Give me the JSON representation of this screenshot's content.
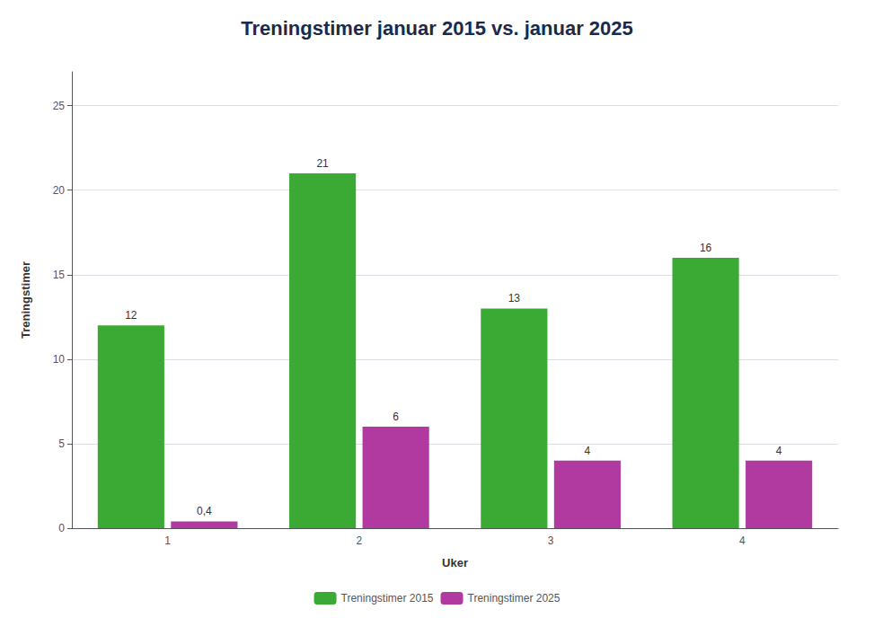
{
  "chart_data": {
    "type": "bar",
    "title": "Treningstimer januar 2015 vs. januar 2025",
    "xlabel": "Uker",
    "ylabel": "Treningstimer",
    "categories": [
      1,
      2,
      3,
      4
    ],
    "series": [
      {
        "name": "Treningstimer 2015",
        "color": "#3aaa35",
        "values": [
          12,
          21,
          13,
          16
        ],
        "value_labels": [
          "12",
          "21",
          "13",
          "16"
        ]
      },
      {
        "name": "Treningstimer 2025",
        "color": "#b03aa0",
        "values": [
          0.4,
          6,
          4,
          4
        ],
        "value_labels": [
          "0,4",
          "6",
          "4",
          "4"
        ]
      }
    ],
    "ylim": [
      0,
      27
    ],
    "yticks": [
      0,
      5,
      10,
      15,
      20,
      25
    ],
    "grid": true,
    "data_labels": true,
    "legend": "bottom"
  }
}
